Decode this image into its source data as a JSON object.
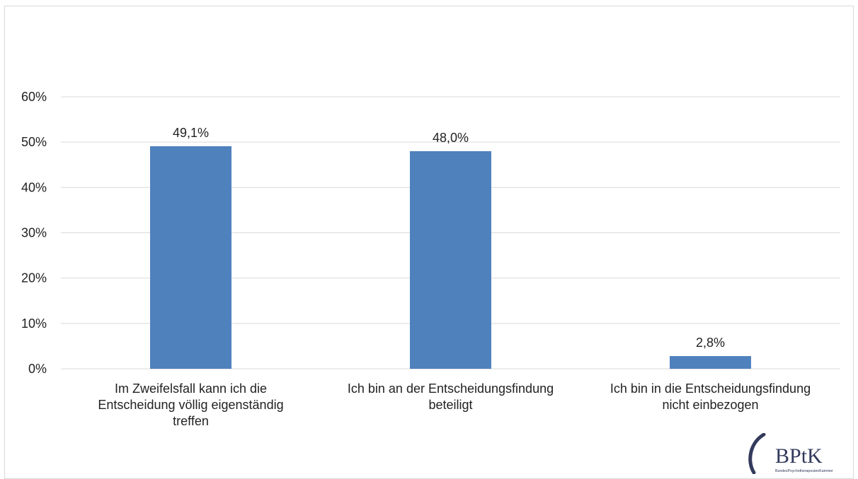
{
  "chart_data": {
    "type": "bar",
    "categories": [
      [
        "Im Zweifelsfall kann ich die",
        "Entscheidung völlig eigenständig",
        "treffen"
      ],
      [
        "Ich bin an der Entscheidungsfindung",
        "beteiligt"
      ],
      [
        "Ich bin in die Entscheidungsfindung",
        "nicht einbezogen"
      ]
    ],
    "values": [
      49.1,
      48.0,
      2.8
    ],
    "data_labels": [
      "49,1%",
      "48,0%",
      "2,8%"
    ],
    "y_ticks": [
      0,
      10,
      20,
      30,
      40,
      50,
      60
    ],
    "y_tick_labels": [
      "0%",
      "10%",
      "20%",
      "30%",
      "40%",
      "50%",
      "60%"
    ],
    "ylim": [
      0,
      60
    ],
    "grid": true,
    "legend": "none",
    "bar_color": "#4f81bd",
    "title": "",
    "xlabel": "",
    "ylabel": ""
  },
  "logo": {
    "text": "BPtK",
    "subtext": "BundesPsychotherapeutenKammer",
    "color": "#333a5c"
  }
}
